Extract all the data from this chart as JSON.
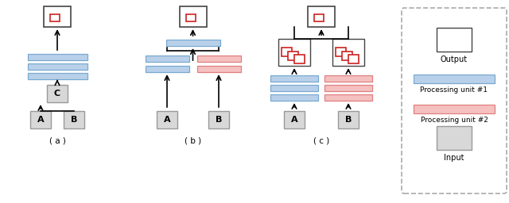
{
  "blue_color": "#b8d0ea",
  "blue_edge": "#7aaad0",
  "pink_color": "#f5c0c0",
  "pink_edge": "#e08080",
  "gray_color": "#d8d8d8",
  "gray_edge": "#999999",
  "white_color": "#ffffff",
  "white_edge": "#444444",
  "red_box_edge": "#cc2222",
  "output_label": "Output",
  "unit1_label": "Processing unit #1",
  "unit2_label": "Processing unit #2",
  "input_label": "Input",
  "label_a": "( a )",
  "label_b": "( b )",
  "label_c": "( c )"
}
